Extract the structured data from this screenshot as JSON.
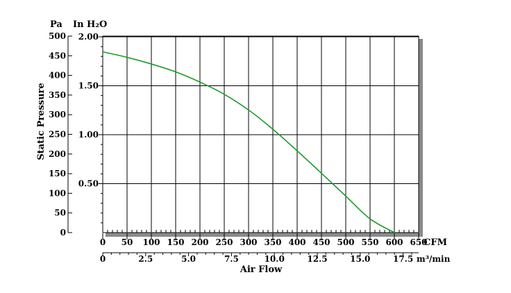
{
  "chart_data": {
    "type": "line",
    "xlabel": "Air Flow",
    "ylabel": "Static Pressure",
    "x_unit_primary": "CFM",
    "x_unit_secondary": "m³/min",
    "y_unit_primary": "Pa",
    "y_unit_secondary": "In H₂O",
    "xlim": [
      0,
      650
    ],
    "ylim": [
      0,
      500
    ],
    "x_ticks_cfm": [
      "0",
      "50",
      "100",
      "150",
      "200",
      "250",
      "300",
      "350",
      "400",
      "450",
      "500",
      "550",
      "600",
      "650"
    ],
    "x_ticks_m3min": [
      "0",
      "2.5",
      "5.0",
      "7.5",
      "10.0",
      "12.5",
      "15.0",
      "17.5"
    ],
    "y_ticks_pa": [
      "0",
      "50",
      "100",
      "150",
      "200",
      "250",
      "300",
      "350",
      "400",
      "450",
      "500"
    ],
    "y_ticks_inh2o": [
      "0.50",
      "1.00",
      "1.50",
      "2.00"
    ],
    "grid": true,
    "series": [
      {
        "color": "#1f9a2c",
        "x": [
          0,
          50,
          100,
          150,
          200,
          250,
          300,
          350,
          400,
          450,
          500,
          550,
          600
        ],
        "y": [
          460,
          446,
          429,
          409,
          383,
          352,
          312,
          263,
          208,
          151,
          93,
          35,
          0
        ]
      }
    ]
  }
}
